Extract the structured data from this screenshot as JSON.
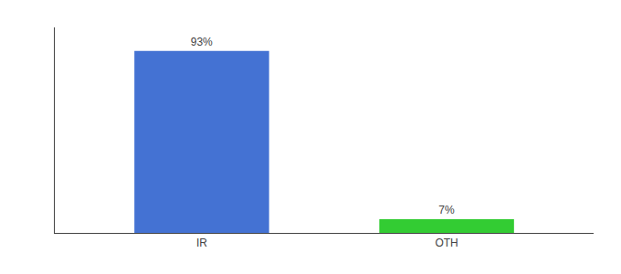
{
  "chart_data": {
    "type": "bar",
    "categories": [
      "IR",
      "OTH"
    ],
    "values": [
      93,
      7
    ],
    "value_labels": [
      "93%",
      "7%"
    ],
    "colors": [
      "#4472D3",
      "#33CC33"
    ],
    "data_labels": true,
    "ylim": [
      0,
      105
    ],
    "yticks": [],
    "grid": false,
    "tick_labels": "x"
  }
}
